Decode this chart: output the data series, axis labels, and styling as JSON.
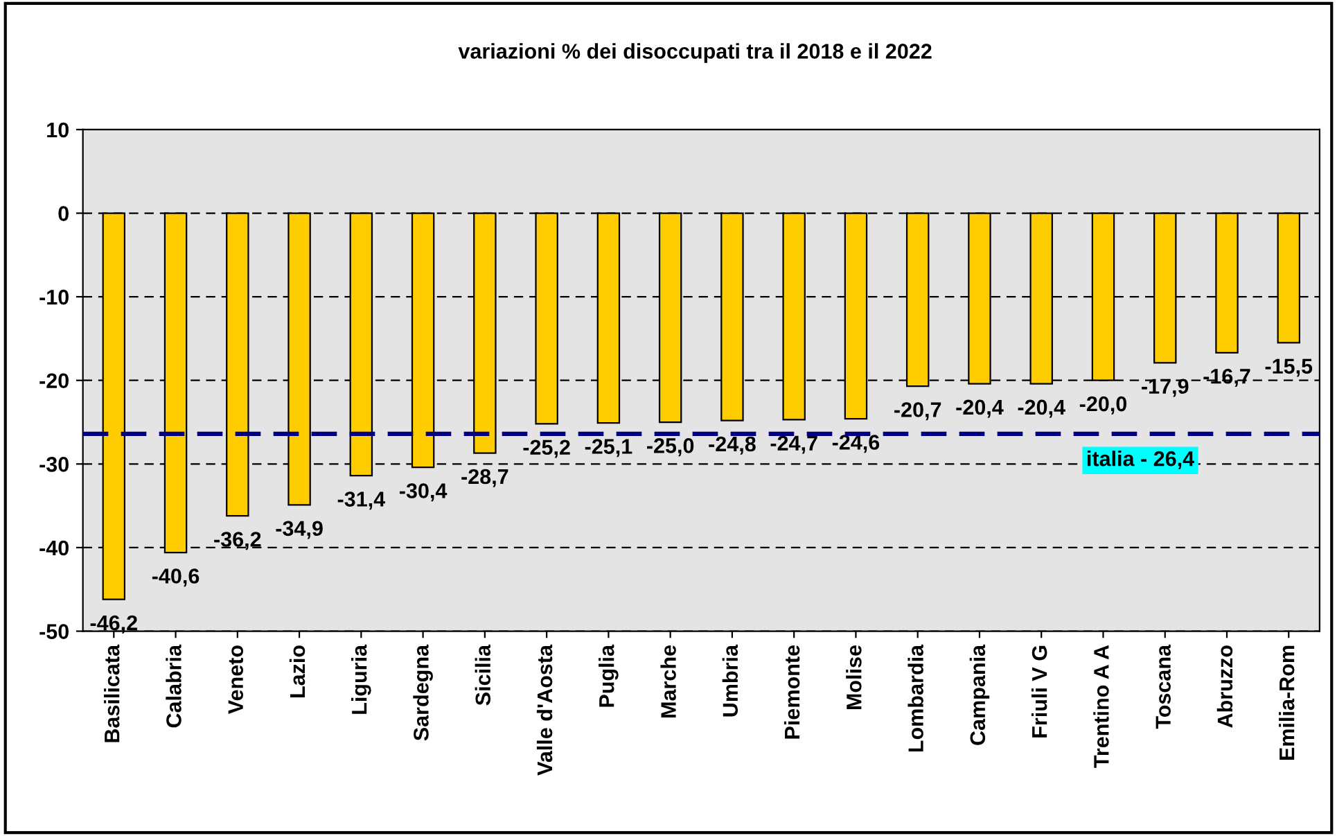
{
  "chart_data": {
    "type": "bar",
    "title": "variazioni % dei disoccupati tra il 2018 e il 2022",
    "categories": [
      "Basilicata",
      "Calabria",
      "Veneto",
      "Lazio",
      "Liguria",
      "Sardegna",
      "Sicilia",
      "Valle d'Aosta",
      "Puglia",
      "Marche",
      "Umbria",
      "Piemonte",
      "Molise",
      "Lombardia",
      "Campania",
      "Friuli V G",
      "Trentino A A",
      "Toscana",
      "Abruzzo",
      "Emilia-Rom"
    ],
    "values": [
      -46.2,
      -40.6,
      -36.2,
      -34.9,
      -31.4,
      -30.4,
      -28.7,
      -25.2,
      -25.1,
      -25.0,
      -24.8,
      -24.7,
      -24.6,
      -20.7,
      -20.4,
      -20.4,
      -20.0,
      -17.9,
      -16.7,
      -15.5
    ],
    "value_labels": [
      "-46,2",
      "-40,6",
      "-36,2",
      "-34,9",
      "-31,4",
      "-30,4",
      "-28,7",
      "-25,2",
      "-25,1",
      "-25,0",
      "-24,8",
      "-24,7",
      "-24,6",
      "-20,7",
      "-20,4",
      "-20,4",
      "-20,0",
      "-17,9",
      "-16,7",
      "-15,5"
    ],
    "color": "#ffcc00",
    "ylim": [
      -50,
      10
    ],
    "yticks": [
      -50,
      -40,
      -30,
      -20,
      -10,
      0,
      10
    ],
    "grid": "y",
    "ref_lines": [
      {
        "axis": "y",
        "value": -26.4,
        "label": "italia - 26,4",
        "color": "#000080",
        "line_style": "dashed"
      }
    ]
  }
}
